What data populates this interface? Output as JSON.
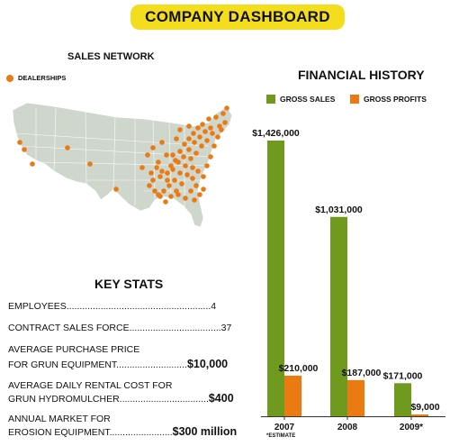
{
  "banner": {
    "title": "COMPANY DASHBOARD"
  },
  "sales_network": {
    "title": "SALES NETWORK",
    "legend_label": "DEALERSHIPS"
  },
  "key_stats": {
    "title": "KEY STATS",
    "lines": [
      {
        "text": "EMPLOYEES.......................................................4"
      },
      {
        "text": "CONTRACT SALES FORCE...................................37"
      },
      {
        "text": "AVERAGE PURCHASE PRICE"
      },
      {
        "text": "FOR GRUN EQUIPMENT...........................",
        "value": "$10,000"
      },
      {
        "text": "AVERAGE DAILY RENTAL COST FOR"
      },
      {
        "text": "GRUN HYDROMULCHER..................................",
        "value": "$400"
      },
      {
        "text": "ANNUAL MARKET FOR"
      },
      {
        "text": "EROSION EQUIPMENT........................",
        "value": "$300 million"
      }
    ]
  },
  "colors": {
    "gross_sales": "#6f9a1e",
    "gross_profits": "#ec7a12",
    "map_fill": "#cfd6cc",
    "banner": "#f3dd1c"
  },
  "chart_data": {
    "type": "bar",
    "title": "FINANCIAL HISTORY",
    "categories": [
      "2007",
      "2008",
      "2009*"
    ],
    "series": [
      {
        "name": "GROSS SALES",
        "values": [
          1426000,
          1031000,
          171000
        ],
        "labels": [
          "$1,426,000",
          "$1,031,000",
          "$171,000"
        ]
      },
      {
        "name": "GROSS PROFITS",
        "values": [
          210000,
          187000,
          9000
        ],
        "labels": [
          "$210,000",
          "$187,000",
          "$9,000"
        ]
      }
    ],
    "ylim": [
      0,
      1426000
    ],
    "grid": false,
    "legend_position": "top",
    "footnote": "*ESTIMATE"
  }
}
